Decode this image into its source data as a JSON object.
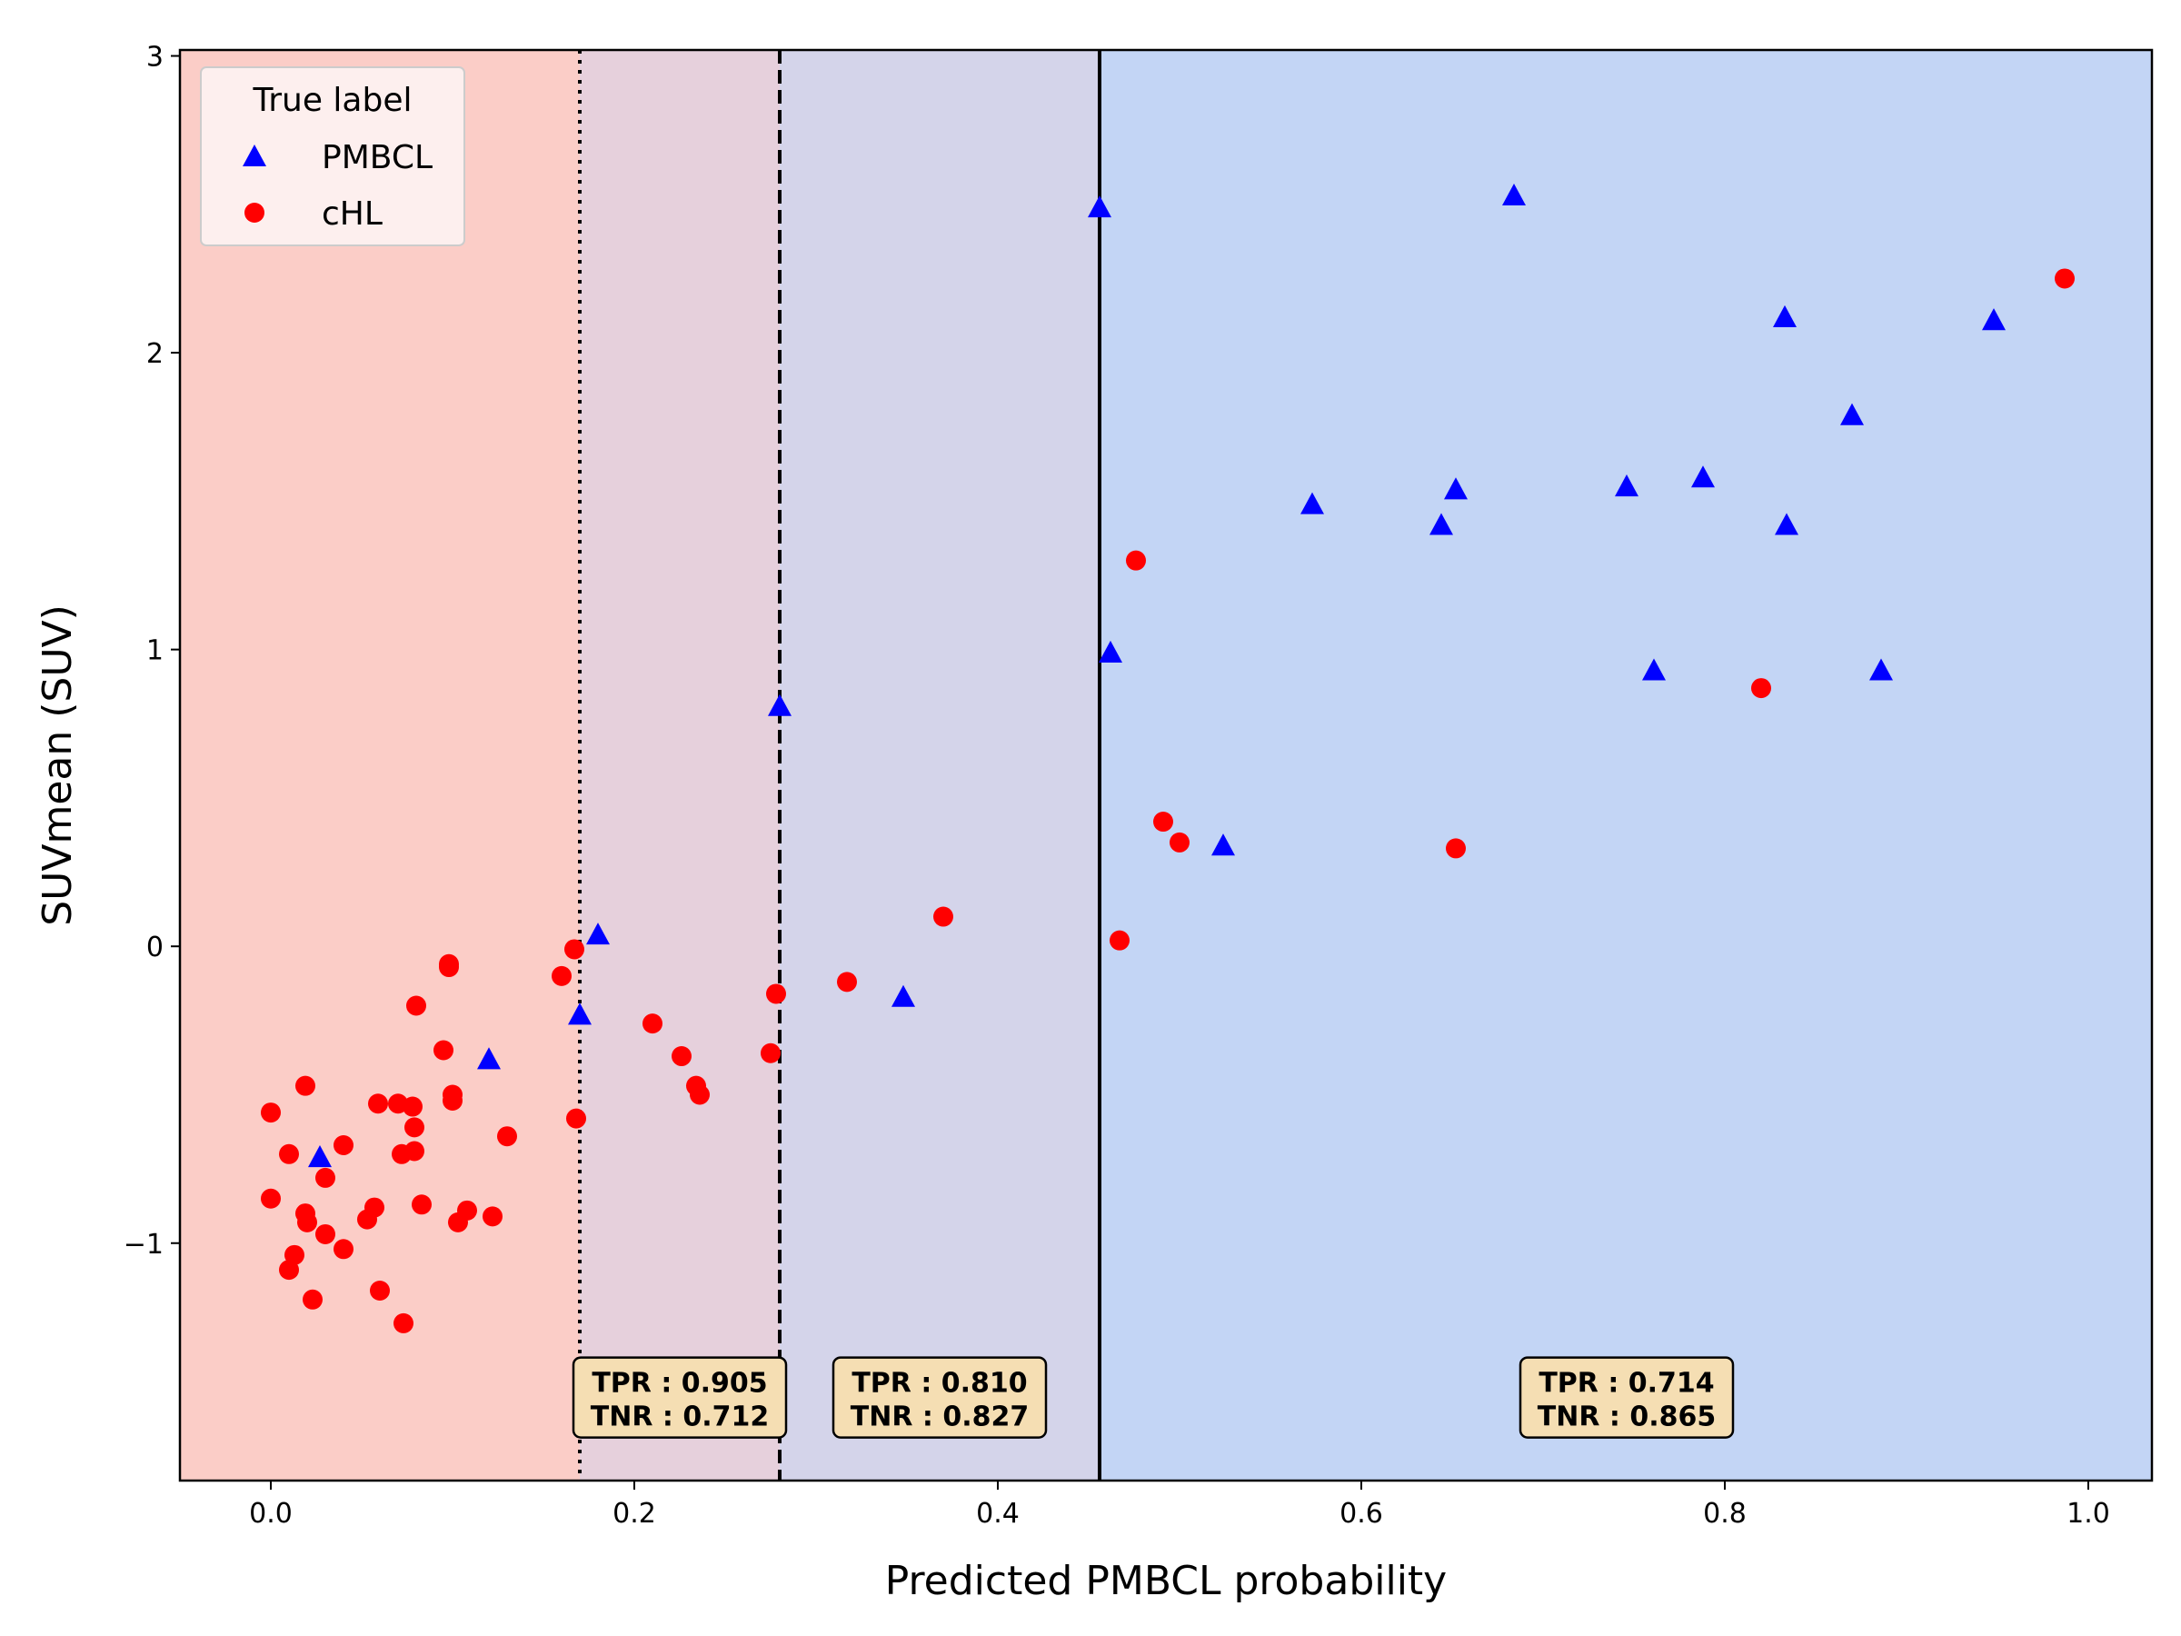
{
  "chart_data": {
    "type": "scatter",
    "xlabel": "Predicted PMBCL probability",
    "ylabel": "SUVmean (SUV)",
    "xlim": [
      -0.05,
      1.035
    ],
    "ylim": [
      -1.8,
      3.02
    ],
    "xticks": [
      {
        "value": 0.0,
        "label": "0.0"
      },
      {
        "value": 0.2,
        "label": "0.2"
      },
      {
        "value": 0.4,
        "label": "0.4"
      },
      {
        "value": 0.6,
        "label": "0.6"
      },
      {
        "value": 0.8,
        "label": "0.8"
      },
      {
        "value": 1.0,
        "label": "1.0"
      }
    ],
    "yticks": [
      {
        "value": -1,
        "label": "−1"
      },
      {
        "value": 0,
        "label": "0"
      },
      {
        "value": 1,
        "label": "1"
      },
      {
        "value": 2,
        "label": "2"
      },
      {
        "value": 3,
        "label": "3"
      }
    ],
    "grid": false,
    "regions": [
      {
        "from": -0.05,
        "to": 0.17,
        "color": "#fbcdc7"
      },
      {
        "from": 0.17,
        "to": 0.28,
        "color": "#e6d0dc"
      },
      {
        "from": 0.28,
        "to": 0.456,
        "color": "#d4d4ea"
      },
      {
        "from": 0.456,
        "to": 1.035,
        "color": "#c3d5f5"
      }
    ],
    "thresholds": [
      {
        "x": 0.17,
        "style": "dotted"
      },
      {
        "x": 0.28,
        "style": "dashed"
      },
      {
        "x": 0.456,
        "style": "solid"
      }
    ],
    "legend": {
      "title": "True label",
      "position": "top-left"
    },
    "series": [
      {
        "name": "PMBCL",
        "marker": "triangle",
        "color": "#0000ff",
        "points": [
          [
            0.027,
            -0.71
          ],
          [
            0.12,
            -0.38
          ],
          [
            0.17,
            -0.23
          ],
          [
            0.18,
            0.04
          ],
          [
            0.28,
            0.81
          ],
          [
            0.348,
            -0.17
          ],
          [
            0.456,
            2.49
          ],
          [
            0.462,
            0.99
          ],
          [
            0.524,
            0.34
          ],
          [
            0.573,
            1.49
          ],
          [
            0.644,
            1.42
          ],
          [
            0.652,
            1.54
          ],
          [
            0.684,
            2.53
          ],
          [
            0.746,
            1.55
          ],
          [
            0.761,
            0.93
          ],
          [
            0.788,
            1.58
          ],
          [
            0.833,
            2.12
          ],
          [
            0.834,
            1.42
          ],
          [
            0.87,
            1.79
          ],
          [
            0.886,
            0.93
          ],
          [
            0.948,
            2.11
          ]
        ]
      },
      {
        "name": "cHL",
        "marker": "circle",
        "color": "#ff0000",
        "points": [
          [
            0.0,
            -0.56
          ],
          [
            0.0,
            -0.85
          ],
          [
            0.01,
            -0.7
          ],
          [
            0.01,
            -1.09
          ],
          [
            0.013,
            -1.04
          ],
          [
            0.019,
            -0.47
          ],
          [
            0.019,
            -0.9
          ],
          [
            0.02,
            -0.93
          ],
          [
            0.023,
            -1.19
          ],
          [
            0.03,
            -0.78
          ],
          [
            0.03,
            -0.97
          ],
          [
            0.04,
            -0.67
          ],
          [
            0.04,
            -1.02
          ],
          [
            0.053,
            -0.92
          ],
          [
            0.057,
            -0.88
          ],
          [
            0.059,
            -0.53
          ],
          [
            0.06,
            -1.16
          ],
          [
            0.07,
            -0.53
          ],
          [
            0.072,
            -0.7
          ],
          [
            0.073,
            -1.27
          ],
          [
            0.078,
            -0.54
          ],
          [
            0.079,
            -0.69
          ],
          [
            0.079,
            -0.61
          ],
          [
            0.08,
            -0.2
          ],
          [
            0.083,
            -0.87
          ],
          [
            0.095,
            -0.35
          ],
          [
            0.098,
            -0.06
          ],
          [
            0.098,
            -0.07
          ],
          [
            0.1,
            -0.5
          ],
          [
            0.1,
            -0.52
          ],
          [
            0.103,
            -0.93
          ],
          [
            0.108,
            -0.89
          ],
          [
            0.122,
            -0.91
          ],
          [
            0.13,
            -0.64
          ],
          [
            0.16,
            -0.1
          ],
          [
            0.167,
            -0.01
          ],
          [
            0.168,
            -0.58
          ],
          [
            0.21,
            -0.26
          ],
          [
            0.226,
            -0.37
          ],
          [
            0.234,
            -0.47
          ],
          [
            0.236,
            -0.5
          ],
          [
            0.275,
            -0.36
          ],
          [
            0.278,
            -0.16
          ],
          [
            0.317,
            -0.12
          ],
          [
            0.37,
            0.1
          ],
          [
            0.467,
            0.02
          ],
          [
            0.476,
            1.3
          ],
          [
            0.491,
            0.42
          ],
          [
            0.5,
            0.35
          ],
          [
            0.652,
            0.33
          ],
          [
            0.82,
            0.87
          ],
          [
            0.987,
            2.25
          ]
        ]
      }
    ],
    "annotations": [
      {
        "x": 0.225,
        "y": -1.52,
        "lines": [
          "TPR : 0.905",
          "TNR : 0.712"
        ],
        "box_color": "#f5deb3"
      },
      {
        "x": 0.368,
        "y": -1.52,
        "lines": [
          "TPR : 0.810",
          "TNR : 0.827"
        ],
        "box_color": "#f5deb3"
      },
      {
        "x": 0.746,
        "y": -1.52,
        "lines": [
          "TPR : 0.714",
          "TNR : 0.865"
        ],
        "box_color": "#f5deb3"
      }
    ]
  }
}
